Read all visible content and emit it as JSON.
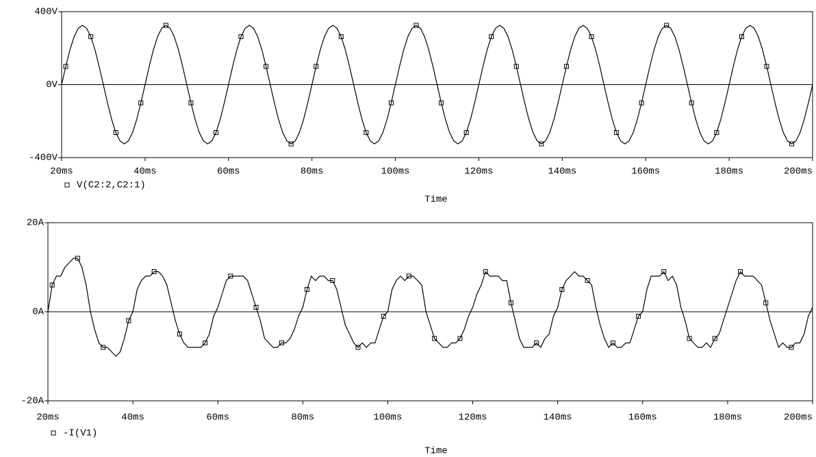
{
  "chart_data": [
    {
      "type": "line",
      "xlabel": "Time",
      "x": [
        20,
        21,
        22,
        23,
        24,
        25,
        26,
        27,
        28,
        29,
        30,
        31,
        32,
        33,
        34,
        35,
        36,
        37,
        38,
        39,
        40,
        41,
        42,
        43,
        44,
        45,
        46,
        47,
        48,
        49,
        50,
        51,
        52,
        53,
        54,
        55,
        56,
        57,
        58,
        59,
        60,
        61,
        62,
        63,
        64,
        65,
        66,
        67,
        68,
        69,
        70,
        71,
        72,
        73,
        74,
        75,
        76,
        77,
        78,
        79,
        80,
        81,
        82,
        83,
        84,
        85,
        86,
        87,
        88,
        89,
        90,
        91,
        92,
        93,
        94,
        95,
        96,
        97,
        98,
        99,
        100,
        101,
        102,
        103,
        104,
        105,
        106,
        107,
        108,
        109,
        110,
        111,
        112,
        113,
        114,
        115,
        116,
        117,
        118,
        119,
        120,
        121,
        122,
        123,
        124,
        125,
        126,
        127,
        128,
        129,
        130,
        131,
        132,
        133,
        134,
        135,
        136,
        137,
        138,
        139,
        140,
        141,
        142,
        143,
        144,
        145,
        146,
        147,
        148,
        149,
        150,
        151,
        152,
        153,
        154,
        155,
        156,
        157,
        158,
        159,
        160,
        161,
        162,
        163,
        164,
        165,
        166,
        167,
        168,
        169,
        170,
        171,
        172,
        173,
        174,
        175,
        176,
        177,
        178,
        179,
        180,
        181,
        182,
        183,
        184,
        185,
        186,
        187,
        188,
        189,
        190,
        191,
        192,
        193,
        194,
        195,
        196,
        197,
        198,
        199,
        200
      ],
      "series": [
        {
          "name": "V(C2:2,C2:1)",
          "color": "#000000",
          "values": [
            0,
            100,
            191,
            263,
            309,
            325,
            309,
            263,
            191,
            100,
            0,
            -100,
            -191,
            -263,
            -309,
            -325,
            -309,
            -263,
            -191,
            -100,
            0,
            100,
            191,
            263,
            309,
            325,
            309,
            263,
            191,
            100,
            0,
            -100,
            -191,
            -263,
            -309,
            -325,
            -309,
            -263,
            -191,
            -100,
            0,
            100,
            191,
            263,
            309,
            325,
            309,
            263,
            191,
            100,
            0,
            -100,
            -191,
            -263,
            -309,
            -325,
            -309,
            -263,
            -191,
            -100,
            0,
            100,
            191,
            263,
            309,
            325,
            309,
            263,
            191,
            100,
            0,
            -100,
            -191,
            -263,
            -309,
            -325,
            -309,
            -263,
            -191,
            -100,
            0,
            100,
            191,
            263,
            309,
            325,
            309,
            263,
            191,
            100,
            0,
            -100,
            -191,
            -263,
            -309,
            -325,
            -309,
            -263,
            -191,
            -100,
            0,
            100,
            191,
            263,
            309,
            325,
            309,
            263,
            191,
            100,
            0,
            -100,
            -191,
            -263,
            -309,
            -325,
            -309,
            -263,
            -191,
            -100,
            0,
            100,
            191,
            263,
            309,
            325,
            309,
            263,
            191,
            100,
            0,
            -100,
            -191,
            -263,
            -309,
            -325,
            -309,
            -263,
            -191,
            -100,
            0,
            100,
            191,
            263,
            309,
            325,
            309,
            263,
            191,
            100,
            0,
            -100,
            -191,
            -263,
            -309,
            -325,
            -309,
            -263,
            -191,
            -100,
            0,
            100,
            191,
            263,
            309,
            325,
            309,
            263,
            191,
            100,
            0,
            -100,
            -191,
            -263,
            -309,
            -325,
            -309,
            -263,
            -191,
            -100,
            0
          ]
        }
      ],
      "xlim": [
        20,
        200
      ],
      "xticks": [
        {
          "value": 20,
          "label": "20ms"
        },
        {
          "value": 40,
          "label": "40ms"
        },
        {
          "value": 60,
          "label": "60ms"
        },
        {
          "value": 80,
          "label": "80ms"
        },
        {
          "value": 100,
          "label": "100ms"
        },
        {
          "value": 120,
          "label": "120ms"
        },
        {
          "value": 140,
          "label": "140ms"
        },
        {
          "value": 160,
          "label": "160ms"
        },
        {
          "value": 180,
          "label": "180ms"
        },
        {
          "value": 200,
          "label": "200ms"
        }
      ],
      "ylim": [
        -400,
        400
      ],
      "yticks": [
        {
          "value": -400,
          "label": "-400V"
        },
        {
          "value": 0,
          "label": "0V"
        },
        {
          "value": 400,
          "label": "400V"
        }
      ]
    },
    {
      "type": "line",
      "xlabel": "Time",
      "x": [
        20,
        21,
        22,
        23,
        24,
        25,
        26,
        27,
        28,
        29,
        30,
        31,
        32,
        33,
        34,
        35,
        36,
        37,
        38,
        39,
        40,
        41,
        42,
        43,
        44,
        45,
        46,
        47,
        48,
        49,
        50,
        51,
        52,
        53,
        54,
        55,
        56,
        57,
        58,
        59,
        60,
        61,
        62,
        63,
        64,
        65,
        66,
        67,
        68,
        69,
        70,
        71,
        72,
        73,
        74,
        75,
        76,
        77,
        78,
        79,
        80,
        81,
        82,
        83,
        84,
        85,
        86,
        87,
        88,
        89,
        90,
        91,
        92,
        93,
        94,
        95,
        96,
        97,
        98,
        99,
        100,
        101,
        102,
        103,
        104,
        105,
        106,
        107,
        108,
        109,
        110,
        111,
        112,
        113,
        114,
        115,
        116,
        117,
        118,
        119,
        120,
        121,
        122,
        123,
        124,
        125,
        126,
        127,
        128,
        129,
        130,
        131,
        132,
        133,
        134,
        135,
        136,
        137,
        138,
        139,
        140,
        141,
        142,
        143,
        144,
        145,
        146,
        147,
        148,
        149,
        150,
        151,
        152,
        153,
        154,
        155,
        156,
        157,
        158,
        159,
        160,
        161,
        162,
        163,
        164,
        165,
        166,
        167,
        168,
        169,
        170,
        171,
        172,
        173,
        174,
        175,
        176,
        177,
        178,
        179,
        180,
        181,
        182,
        183,
        184,
        185,
        186,
        187,
        188,
        189,
        190,
        191,
        192,
        193,
        194,
        195,
        196,
        197,
        198,
        199,
        200
      ],
      "series": [
        {
          "name": "-I(V1)",
          "color": "#000000",
          "values": [
            0,
            6,
            8,
            8,
            10,
            11,
            12,
            12,
            10,
            6,
            0,
            -4,
            -7,
            -8,
            -8,
            -9,
            -10,
            -9,
            -6,
            -2,
            0,
            5,
            7,
            8,
            8,
            9,
            9,
            8,
            6,
            2,
            -2,
            -5,
            -7,
            -8,
            -8,
            -8,
            -8,
            -7,
            -5,
            -1,
            1,
            4,
            7,
            8,
            8,
            8,
            8,
            7,
            4,
            1,
            -2,
            -6,
            -7,
            -8,
            -8,
            -7,
            -7,
            -6,
            -4,
            -1,
            1,
            5,
            8,
            7,
            8,
            8,
            7,
            7,
            5,
            1,
            -3,
            -5,
            -7,
            -8,
            -7,
            -8,
            -7,
            -7,
            -4,
            -1,
            0,
            5,
            7,
            8,
            7,
            8,
            8,
            7,
            6,
            0,
            -3,
            -6,
            -7,
            -8,
            -8,
            -7,
            -7,
            -6,
            -4,
            -1,
            1,
            4,
            6,
            9,
            8,
            8,
            8,
            7,
            7,
            2,
            -2,
            -6,
            -8,
            -8,
            -8,
            -7,
            -8,
            -6,
            -5,
            -1,
            1,
            5,
            7,
            8,
            9,
            8,
            8,
            7,
            6,
            1,
            -3,
            -6,
            -8,
            -7,
            -8,
            -8,
            -7,
            -7,
            -4,
            -1,
            0,
            5,
            8,
            8,
            8,
            9,
            7,
            8,
            6,
            1,
            -2,
            -6,
            -7,
            -8,
            -8,
            -7,
            -8,
            -6,
            -5,
            -2,
            1,
            4,
            7,
            9,
            8,
            8,
            8,
            7,
            6,
            2,
            -2,
            -5,
            -8,
            -7,
            -8,
            -8,
            -7,
            -7,
            -5,
            -1,
            1
          ]
        }
      ],
      "xlim": [
        20,
        200
      ],
      "xticks": [
        {
          "value": 20,
          "label": "20ms"
        },
        {
          "value": 40,
          "label": "40ms"
        },
        {
          "value": 60,
          "label": "60ms"
        },
        {
          "value": 80,
          "label": "80ms"
        },
        {
          "value": 100,
          "label": "100ms"
        },
        {
          "value": 120,
          "label": "120ms"
        },
        {
          "value": 140,
          "label": "140ms"
        },
        {
          "value": 160,
          "label": "160ms"
        },
        {
          "value": 180,
          "label": "180ms"
        },
        {
          "value": 200,
          "label": "200ms"
        }
      ],
      "ylim": [
        -20,
        20
      ],
      "yticks": [
        {
          "value": -20,
          "label": "-20A"
        },
        {
          "value": 0,
          "label": "0A"
        },
        {
          "value": 20,
          "label": "20A"
        }
      ]
    }
  ]
}
